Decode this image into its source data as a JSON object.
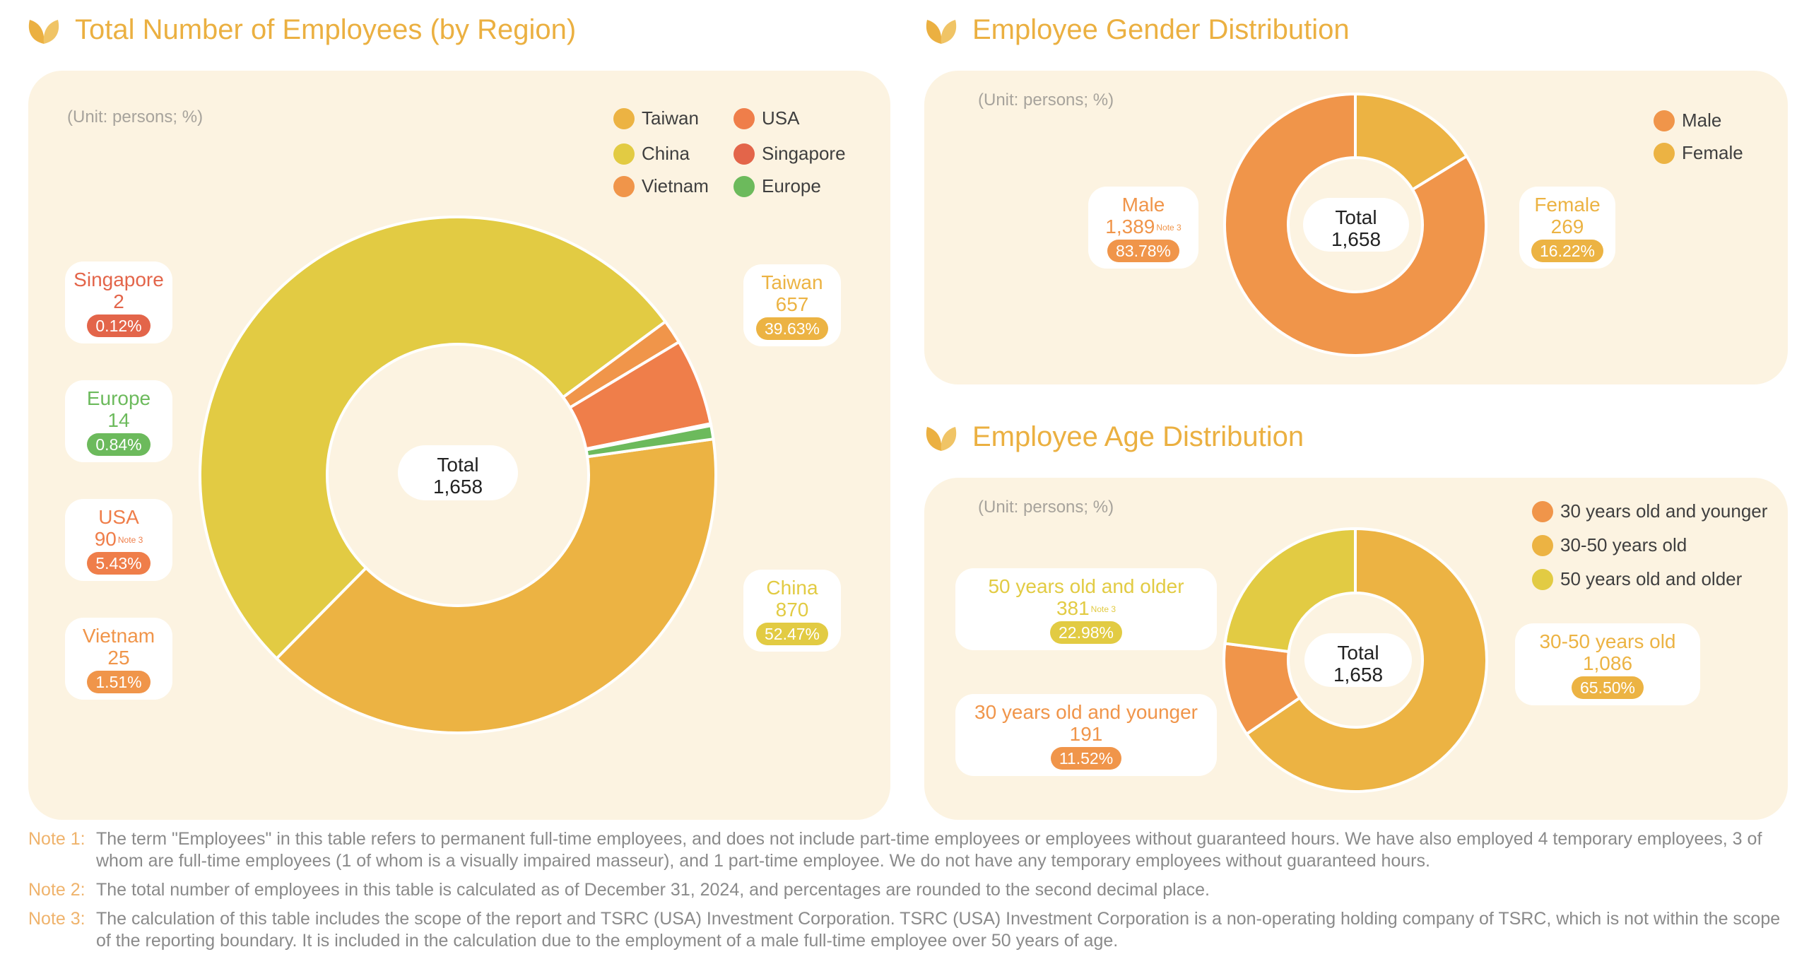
{
  "region_section": {
    "title": "Total Number of Employees (by Region)",
    "unit": "(Unit: persons; %)"
  },
  "gender_section": {
    "title": "Employee Gender Distribution",
    "unit": "(Unit: persons; %)"
  },
  "age_section": {
    "title": "Employee Age Distribution",
    "unit": "(Unit: persons; %)"
  },
  "chart_data": [
    {
      "type": "pie",
      "title": "Total Number of Employees (by Region)",
      "center_label": "Total",
      "center_value": "1,658",
      "legend_placement": "top-right",
      "slices": [
        {
          "name": "Taiwan",
          "value": 657,
          "value_label": "657",
          "percent": 39.63,
          "percent_label": "39.63%",
          "color": "#ecb343",
          "note": ""
        },
        {
          "name": "China",
          "value": 870,
          "value_label": "870",
          "percent": 52.47,
          "percent_label": "52.47%",
          "color": "#e2cb43",
          "note": ""
        },
        {
          "name": "Vietnam",
          "value": 25,
          "value_label": "25",
          "percent": 1.51,
          "percent_label": "1.51%",
          "color": "#f0954a",
          "note": ""
        },
        {
          "name": "USA",
          "value": 90,
          "value_label": "90",
          "percent": 5.43,
          "percent_label": "5.43%",
          "color": "#ef7e4a",
          "note": "Note 3"
        },
        {
          "name": "Singapore",
          "value": 2,
          "value_label": "2",
          "percent": 0.12,
          "percent_label": "0.12%",
          "color": "#e3654a",
          "note": ""
        },
        {
          "name": "Europe",
          "value": 14,
          "value_label": "14",
          "percent": 0.84,
          "percent_label": "0.84%",
          "color": "#6cba5c",
          "note": ""
        }
      ],
      "legend_order": [
        "Taiwan",
        "USA",
        "China",
        "Singapore",
        "Vietnam",
        "Europe"
      ]
    },
    {
      "type": "pie",
      "title": "Employee Gender Distribution",
      "center_label": "Total",
      "center_value": "1,658",
      "legend_placement": "top-right",
      "slices": [
        {
          "name": "Female",
          "value": 269,
          "value_label": "269",
          "percent": 16.22,
          "percent_label": "16.22%",
          "color": "#ecb343",
          "note": ""
        },
        {
          "name": "Male",
          "value": 1389,
          "value_label": "1,389",
          "percent": 83.78,
          "percent_label": "83.78%",
          "color": "#f0954a",
          "note": "Note 3"
        }
      ],
      "legend_order": [
        "Male",
        "Female"
      ]
    },
    {
      "type": "pie",
      "title": "Employee Age Distribution",
      "center_label": "Total",
      "center_value": "1,658",
      "legend_placement": "top-right",
      "slices": [
        {
          "name": "30-50 years old",
          "value": 1086,
          "value_label": "1,086",
          "percent": 65.5,
          "percent_label": "65.50%",
          "color": "#ecb343",
          "note": ""
        },
        {
          "name": "30 years old and younger",
          "value": 191,
          "value_label": "191",
          "percent": 11.52,
          "percent_label": "11.52%",
          "color": "#f0954a",
          "note": ""
        },
        {
          "name": "50 years old and older",
          "value": 381,
          "value_label": "381",
          "percent": 22.98,
          "percent_label": "22.98%",
          "color": "#e2cb43",
          "note": "Note 3"
        }
      ],
      "legend_order": [
        "30 years old and younger",
        "30-50 years old",
        "50 years old and older"
      ]
    }
  ],
  "notes": [
    {
      "label": "Note 1:",
      "text": "The term \"Employees\" in this table refers to permanent full-time employees, and does not include part-time employees or employees without guaranteed hours. We have also employed 4 temporary employees, 3 of whom are full-time employees (1 of whom is a visually impaired masseur), and 1 part-time employee. We do not have any temporary employees without guaranteed hours."
    },
    {
      "label": "Note 2:",
      "text": "The total number of employees in this table is calculated as of December 31, 2024, and percentages are rounded to the second decimal place."
    },
    {
      "label": "Note 3:",
      "text": "The calculation of this table includes the scope of the report and TSRC (USA) Investment Corporation. TSRC (USA) Investment Corporation is a non-operating holding company of TSRC, which is not within the scope of the reporting boundary. It is included in the calculation due to the employment of a male full-time employee over 50 years of age."
    }
  ]
}
